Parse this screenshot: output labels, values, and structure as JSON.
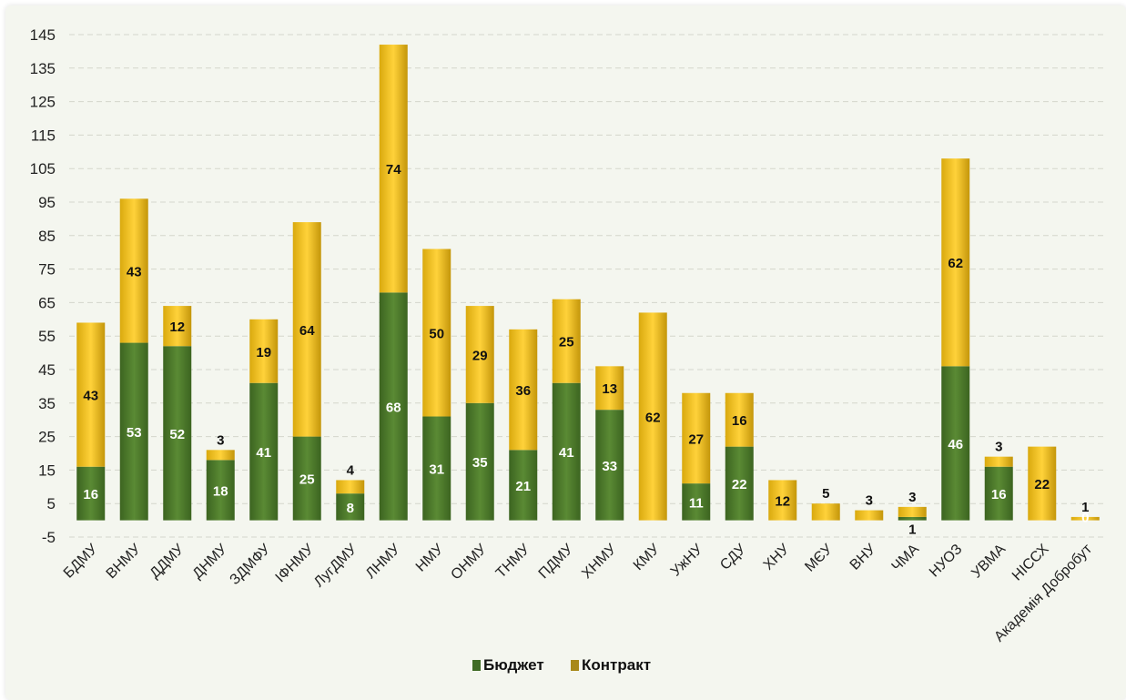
{
  "chart_data": {
    "type": "bar",
    "stacked": true,
    "categories": [
      "БДМУ",
      "ВНМУ",
      "ДДМУ",
      "ДНМУ",
      "ЗДМФУ",
      "ІФНМУ",
      "ЛугДМУ",
      "ЛНМУ",
      "НМУ",
      "ОНМУ",
      "ТНМУ",
      "ПДМУ",
      "ХНМУ",
      "КМУ",
      "УжНУ",
      "СДУ",
      "ХНУ",
      "МЄУ",
      "ВНУ",
      "ЧМА",
      "НУОЗ",
      "УВМА",
      "НІССХ",
      "Академія Добробут"
    ],
    "series": [
      {
        "name": "Бюджет",
        "color": "#4e7a2e",
        "values": [
          16,
          53,
          52,
          18,
          41,
          25,
          8,
          68,
          31,
          35,
          21,
          41,
          33,
          0,
          11,
          22,
          0,
          0,
          0,
          1,
          46,
          16,
          0,
          0
        ]
      },
      {
        "name": "Контракт",
        "color": "#f5c518",
        "values": [
          43,
          43,
          12,
          3,
          19,
          64,
          4,
          74,
          50,
          29,
          36,
          25,
          13,
          62,
          27,
          16,
          12,
          5,
          3,
          3,
          62,
          3,
          22,
          1
        ]
      }
    ],
    "data_labels": {
      "Бюджет": [
        "16",
        "53",
        "52",
        "18",
        "41",
        "25",
        "8",
        "68",
        "31",
        "35",
        "21",
        "41",
        "33",
        "",
        "11",
        "22",
        "",
        "",
        "",
        "1",
        "46",
        "16",
        "",
        "0"
      ],
      "Контракт": [
        "43",
        "43",
        "12",
        "3",
        "19",
        "64",
        "4",
        "74",
        "50",
        "29",
        "36",
        "25",
        "13",
        "62",
        "27",
        "16",
        "12",
        "5",
        "3",
        "3",
        "62",
        "3",
        "22",
        "1"
      ]
    },
    "yticks": [
      -5,
      5,
      15,
      25,
      35,
      45,
      55,
      65,
      75,
      85,
      95,
      105,
      115,
      125,
      135,
      145
    ],
    "ylim": [
      -5,
      145
    ],
    "title": "",
    "xlabel": "",
    "ylabel": "",
    "grid": true,
    "legend_position": "bottom",
    "legend_swatch_colors": {
      "Бюджет": "#3f6b25",
      "Контракт": "#a8891a"
    }
  }
}
